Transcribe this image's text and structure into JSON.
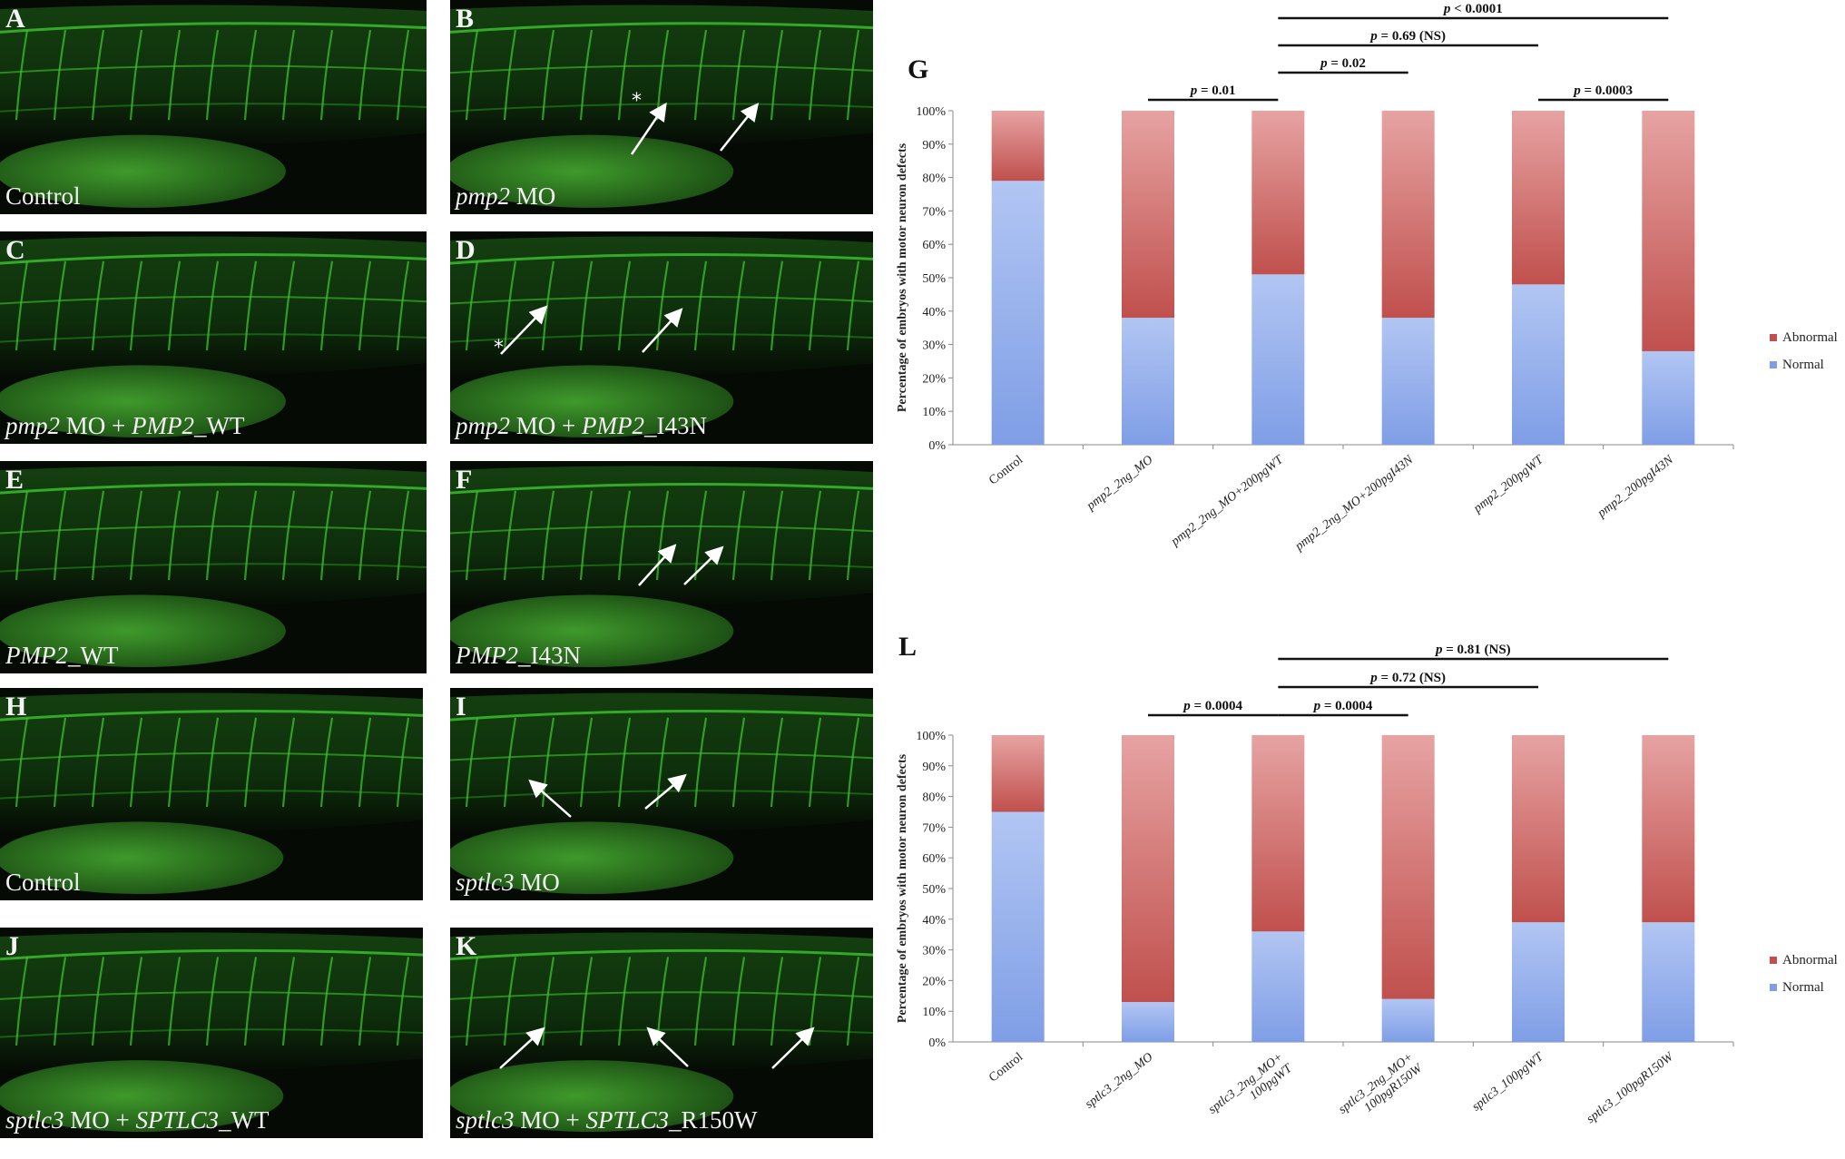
{
  "micrographs": [
    {
      "letter": "A",
      "caption": [
        [
          "Control",
          false
        ]
      ],
      "arrows": [],
      "stars": []
    },
    {
      "letter": "B",
      "caption": [
        [
          "pmp2",
          true
        ],
        [
          " MO",
          false
        ]
      ],
      "arrows": [
        [
          200,
          170,
          236,
          117
        ],
        [
          298,
          166,
          337,
          117
        ]
      ],
      "stars": [
        [
          200,
          118
        ]
      ]
    },
    {
      "letter": "C",
      "caption": [
        [
          "pmp2",
          true
        ],
        [
          " MO + ",
          false
        ],
        [
          "PMP2",
          true
        ],
        [
          "_WT",
          false
        ]
      ],
      "arrows": [],
      "stars": []
    },
    {
      "letter": "D",
      "caption": [
        [
          "pmp2",
          true
        ],
        [
          " MO + ",
          false
        ],
        [
          "PMP2",
          true
        ],
        [
          "_I43N",
          false
        ]
      ],
      "arrows": [
        [
          56,
          135,
          104,
          85
        ],
        [
          212,
          133,
          253,
          88
        ]
      ],
      "stars": [
        [
          48,
          135
        ]
      ]
    },
    {
      "letter": "E",
      "caption": [
        [
          "PMP2",
          true
        ],
        [
          "_WT",
          false
        ]
      ],
      "arrows": [],
      "stars": []
    },
    {
      "letter": "F",
      "caption": [
        [
          "PMP2",
          true
        ],
        [
          "_I43N",
          false
        ]
      ],
      "arrows": [
        [
          208,
          137,
          246,
          95
        ],
        [
          258,
          136,
          298,
          97
        ]
      ],
      "stars": []
    },
    {
      "letter": "H",
      "caption": [
        [
          "Control",
          false
        ]
      ],
      "arrows": [],
      "stars": []
    },
    {
      "letter": "I",
      "caption": [
        [
          "sptlc3",
          true
        ],
        [
          " MO",
          false
        ]
      ],
      "arrows": [
        [
          133,
          142,
          90,
          104
        ],
        [
          215,
          133,
          257,
          98
        ]
      ],
      "stars": []
    },
    {
      "letter": "J",
      "caption": [
        [
          "sptlc3",
          true
        ],
        [
          " MO + ",
          false
        ],
        [
          "SPTLC3",
          true
        ],
        [
          "_WT",
          false
        ]
      ],
      "arrows": [],
      "stars": []
    },
    {
      "letter": "K",
      "caption": [
        [
          "sptlc3",
          true
        ],
        [
          " MO + ",
          false
        ],
        [
          "SPTLC3",
          true
        ],
        [
          "_R150W",
          false
        ]
      ],
      "arrows": [
        [
          55,
          155,
          101,
          113
        ],
        [
          262,
          153,
          220,
          113
        ],
        [
          355,
          155,
          398,
          113
        ]
      ],
      "stars": []
    }
  ],
  "chart_data": [
    {
      "panel": "G",
      "type": "bar",
      "stacked": true,
      "ylabel": "Percentage of embryos with motor neuron defects",
      "yticks": [
        "0%",
        "10%",
        "20%",
        "30%",
        "40%",
        "50%",
        "60%",
        "70%",
        "80%",
        "90%",
        "100%"
      ],
      "categories": [
        [
          "Control"
        ],
        [
          "pmp2_2ng_MO"
        ],
        [
          "pmp2_2ng_MO+200pgWT"
        ],
        [
          "pmp2_2ng_MO+200pgI43N"
        ],
        [
          "pmp2_200pgWT"
        ],
        [
          "pmp2_200pgI43N"
        ]
      ],
      "series": [
        {
          "name": "Normal",
          "color": "#7f9ee6",
          "values": [
            79,
            38,
            51,
            38,
            48,
            28
          ]
        },
        {
          "name": "Abnormal",
          "color": "#c0504d",
          "values": [
            21,
            62,
            49,
            62,
            52,
            72
          ]
        }
      ],
      "legend": [
        "Abnormal",
        "Normal"
      ],
      "significance": [
        {
          "text": "p = 0.01",
          "from": 1,
          "to": 2,
          "level": 0
        },
        {
          "text": "p = 0.02",
          "from": 2,
          "to": 3,
          "level": 1
        },
        {
          "text": "p = 0.69 (NS)",
          "from": 2,
          "to": 4,
          "level": 2
        },
        {
          "text": "p < 0.0001",
          "from": 2,
          "to": 5,
          "level": 3
        },
        {
          "text": "p = 0.0003",
          "from": 4,
          "to": 5,
          "level": 0
        }
      ]
    },
    {
      "panel": "L",
      "type": "bar",
      "stacked": true,
      "ylabel": "Percentage of embryos with motor neuron defects",
      "yticks": [
        "0%",
        "10%",
        "20%",
        "30%",
        "40%",
        "50%",
        "60%",
        "70%",
        "80%",
        "90%",
        "100%"
      ],
      "categories": [
        [
          "Control"
        ],
        [
          "sptlc3_2ng_MO"
        ],
        [
          "sptlc3_2ng_MO+",
          "100pgWT"
        ],
        [
          "sptlc3_2ng_MO+",
          "100pgR150W"
        ],
        [
          "sptlc3_100pgWT"
        ],
        [
          "sptlc3_100pgR150W"
        ]
      ],
      "series": [
        {
          "name": "Normal",
          "color": "#7f9ee6",
          "values": [
            75,
            13,
            36,
            14,
            39,
            39
          ]
        },
        {
          "name": "Abnormal",
          "color": "#c0504d",
          "values": [
            25,
            87,
            64,
            86,
            61,
            61
          ]
        }
      ],
      "legend": [
        "Abnormal",
        "Normal"
      ],
      "significance": [
        {
          "text": "p = 0.0004",
          "from": 1,
          "to": 2,
          "level": 0
        },
        {
          "text": "p = 0.0004",
          "from": 2,
          "to": 3,
          "level": 0
        },
        {
          "text": "p = 0.72 (NS)",
          "from": 2,
          "to": 4,
          "level": 1
        },
        {
          "text": "p = 0.81 (NS)",
          "from": 2,
          "to": 5,
          "level": 2
        }
      ]
    }
  ]
}
